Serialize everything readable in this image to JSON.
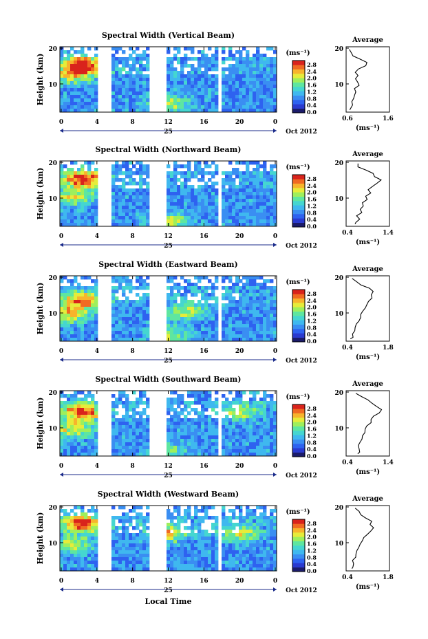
{
  "figure": {
    "xlabel": "Local Time",
    "date_label": "Oct 2012",
    "day_label": "25",
    "cb_unit": "(ms⁻¹)",
    "avg_title": "Average",
    "avg_unit": "(ms⁻¹)",
    "ylabel": "Height (km)",
    "colormap": [
      "#1b1b6b",
      "#2a3ad0",
      "#2e62f0",
      "#3a8ef2",
      "#3fb8ef",
      "#45d6d0",
      "#5ee6a0",
      "#9eef5c",
      "#e6ec3a",
      "#f7b42c",
      "#f06a22",
      "#d9231c"
    ]
  },
  "chart_data": [
    {
      "type": "heatmap",
      "title": "Spectral Width (Vertical Beam)",
      "x_ticks": [
        "0",
        "4",
        "8",
        "12",
        "16",
        "20",
        "0"
      ],
      "y_ticks": [
        "20",
        "10"
      ],
      "cb_ticks": [
        "2.8",
        "2.4",
        "2.0",
        "1.6",
        "1.2",
        "0.8",
        "0.4",
        "0.0"
      ],
      "avg_ticks": [
        "0.6",
        "1.6"
      ],
      "avg_y_ticks": [
        "20",
        "10"
      ],
      "avg_xlim": [
        0.6,
        1.6
      ],
      "avg_profile": [
        [
          1.5,
          0.7
        ],
        [
          2,
          0.72
        ],
        [
          3,
          0.75
        ],
        [
          4,
          0.72
        ],
        [
          5,
          0.8
        ],
        [
          6,
          0.78
        ],
        [
          7,
          0.85
        ],
        [
          8,
          0.82
        ],
        [
          9,
          0.9
        ],
        [
          10,
          0.85
        ],
        [
          11,
          0.8
        ],
        [
          12,
          0.88
        ],
        [
          13,
          0.82
        ],
        [
          14,
          0.9
        ],
        [
          15,
          1.05
        ],
        [
          16,
          1.1
        ],
        [
          17,
          0.95
        ],
        [
          18,
          0.78
        ],
        [
          19,
          0.7
        ],
        [
          20,
          0.68
        ]
      ],
      "gaps": [
        [
          4.3,
          5.8
        ],
        [
          9.8,
          11.7
        ],
        [
          17.7,
          18.0
        ]
      ],
      "hot": [
        [
          2.5,
          15,
          0.9
        ],
        [
          1.5,
          12,
          0.6
        ],
        [
          12,
          4,
          0.5
        ]
      ]
    },
    {
      "type": "heatmap",
      "title": "Spectral Width (Northward Beam)",
      "x_ticks": [
        "0",
        "4",
        "8",
        "12",
        "16",
        "20",
        "0"
      ],
      "y_ticks": [
        "20",
        "10"
      ],
      "cb_ticks": [
        "2.8",
        "2.4",
        "2.0",
        "1.6",
        "1.2",
        "0.8",
        "0.4",
        "0.0"
      ],
      "avg_ticks": [
        "0.4",
        "1.4"
      ],
      "avg_y_ticks": [
        "20",
        "10"
      ],
      "avg_xlim": [
        0.4,
        1.4
      ],
      "avg_profile": [
        [
          1.5,
          0.62
        ],
        [
          2,
          0.65
        ],
        [
          3,
          0.7
        ],
        [
          4,
          0.62
        ],
        [
          5,
          0.75
        ],
        [
          6,
          0.7
        ],
        [
          7,
          0.8
        ],
        [
          8,
          0.78
        ],
        [
          9,
          0.9
        ],
        [
          10,
          0.85
        ],
        [
          11,
          0.95
        ],
        [
          12,
          0.9
        ],
        [
          13,
          1.0
        ],
        [
          14,
          1.1
        ],
        [
          15,
          1.2
        ],
        [
          16,
          1.05
        ],
        [
          17,
          1.0
        ],
        [
          18,
          0.85
        ],
        [
          19,
          0.7
        ],
        [
          20,
          0.65
        ]
      ],
      "gaps": [
        [
          4.3,
          5.8
        ],
        [
          9.8,
          11.7
        ],
        [
          17.7,
          18.0
        ]
      ],
      "hot": [
        [
          2.5,
          15,
          0.9
        ],
        [
          1.5,
          10,
          0.6
        ],
        [
          12,
          3,
          0.5
        ]
      ]
    },
    {
      "type": "heatmap",
      "title": "Spectral Width (Eastward Beam)",
      "x_ticks": [
        "0",
        "4",
        "8",
        "12",
        "16",
        "20",
        "0"
      ],
      "y_ticks": [
        "20",
        "10"
      ],
      "cb_ticks": [
        "2.8",
        "2.4",
        "2.0",
        "1.6",
        "1.2",
        "0.8",
        "0.4",
        "0.0"
      ],
      "avg_ticks": [
        "0.4",
        "1.8"
      ],
      "avg_y_ticks": [
        "20",
        "10"
      ],
      "avg_xlim": [
        0.4,
        1.8
      ],
      "avg_profile": [
        [
          1.5,
          0.55
        ],
        [
          2,
          0.6
        ],
        [
          3,
          0.58
        ],
        [
          4,
          0.65
        ],
        [
          5,
          0.7
        ],
        [
          6,
          0.75
        ],
        [
          7,
          0.8
        ],
        [
          8,
          0.85
        ],
        [
          9,
          0.9
        ],
        [
          10,
          0.95
        ],
        [
          11,
          1.0
        ],
        [
          12,
          1.05
        ],
        [
          13,
          1.1
        ],
        [
          14,
          1.25
        ],
        [
          15,
          1.2
        ],
        [
          16,
          1.3
        ],
        [
          17,
          1.15
        ],
        [
          18,
          0.9
        ],
        [
          19,
          0.75
        ],
        [
          20,
          0.6
        ]
      ],
      "gaps": [
        [
          4.3,
          5.8
        ],
        [
          9.8,
          11.7
        ],
        [
          17.7,
          18.0
        ]
      ],
      "hot": [
        [
          2.5,
          13,
          0.8
        ],
        [
          1.0,
          9,
          0.6
        ],
        [
          14,
          10,
          0.5
        ],
        [
          12,
          3,
          0.5
        ]
      ]
    },
    {
      "type": "heatmap",
      "title": "Spectral Width (Southward Beam)",
      "x_ticks": [
        "0",
        "4",
        "8",
        "12",
        "16",
        "20",
        "0"
      ],
      "y_ticks": [
        "20",
        "10"
      ],
      "cb_ticks": [
        "2.8",
        "2.4",
        "2.0",
        "1.6",
        "1.2",
        "0.8",
        "0.4",
        "0.0"
      ],
      "avg_ticks": [
        "0.4",
        "1.4"
      ],
      "avg_y_ticks": [
        "20",
        "10"
      ],
      "avg_xlim": [
        0.4,
        1.4
      ],
      "avg_profile": [
        [
          1.5,
          0.68
        ],
        [
          2,
          0.7
        ],
        [
          3,
          0.72
        ],
        [
          4,
          0.7
        ],
        [
          5,
          0.75
        ],
        [
          6,
          0.78
        ],
        [
          7,
          0.8
        ],
        [
          8,
          0.85
        ],
        [
          9,
          0.82
        ],
        [
          10,
          0.9
        ],
        [
          11,
          0.95
        ],
        [
          12,
          1.0
        ],
        [
          13,
          1.05
        ],
        [
          14,
          1.15
        ],
        [
          15,
          1.2
        ],
        [
          16,
          1.1
        ],
        [
          17,
          1.0
        ],
        [
          18,
          0.9
        ],
        [
          19,
          0.75
        ],
        [
          20,
          0.6
        ]
      ],
      "gaps": [
        [
          4.3,
          5.8
        ],
        [
          9.8,
          11.7
        ],
        [
          17.7,
          18.0
        ]
      ],
      "hot": [
        [
          2.5,
          14,
          0.9
        ],
        [
          1.5,
          9,
          0.6
        ],
        [
          20,
          14,
          0.5
        ],
        [
          12,
          3,
          0.4
        ]
      ]
    },
    {
      "type": "heatmap",
      "title": "Spectral Width (Westward Beam)",
      "x_ticks": [
        "0",
        "4",
        "8",
        "12",
        "16",
        "20",
        "0"
      ],
      "y_ticks": [
        "20",
        "10"
      ],
      "cb_ticks": [
        "2.8",
        "2.4",
        "2.0",
        "1.6",
        "1.2",
        "0.8",
        "0.4",
        "0.0"
      ],
      "avg_ticks": [
        "0.4",
        "1.8"
      ],
      "avg_y_ticks": [
        "20",
        "10"
      ],
      "avg_xlim": [
        0.4,
        1.8
      ],
      "avg_profile": [
        [
          1.5,
          0.6
        ],
        [
          2,
          0.62
        ],
        [
          3,
          0.65
        ],
        [
          4,
          0.62
        ],
        [
          5,
          0.7
        ],
        [
          6,
          0.72
        ],
        [
          7,
          0.75
        ],
        [
          8,
          0.8
        ],
        [
          9,
          0.85
        ],
        [
          10,
          0.9
        ],
        [
          11,
          1.0
        ],
        [
          12,
          1.1
        ],
        [
          13,
          1.2
        ],
        [
          14,
          1.3
        ],
        [
          15,
          1.15
        ],
        [
          16,
          1.2
        ],
        [
          17,
          1.05
        ],
        [
          18,
          0.9
        ],
        [
          19,
          0.8
        ],
        [
          20,
          0.7
        ]
      ],
      "gaps": [
        [
          4.3,
          5.8
        ],
        [
          9.8,
          11.7
        ],
        [
          17.7,
          18.0
        ]
      ],
      "hot": [
        [
          2.5,
          15,
          0.9
        ],
        [
          12,
          12,
          0.6
        ],
        [
          20,
          12,
          0.5
        ],
        [
          1.5,
          9,
          0.5
        ]
      ]
    }
  ]
}
